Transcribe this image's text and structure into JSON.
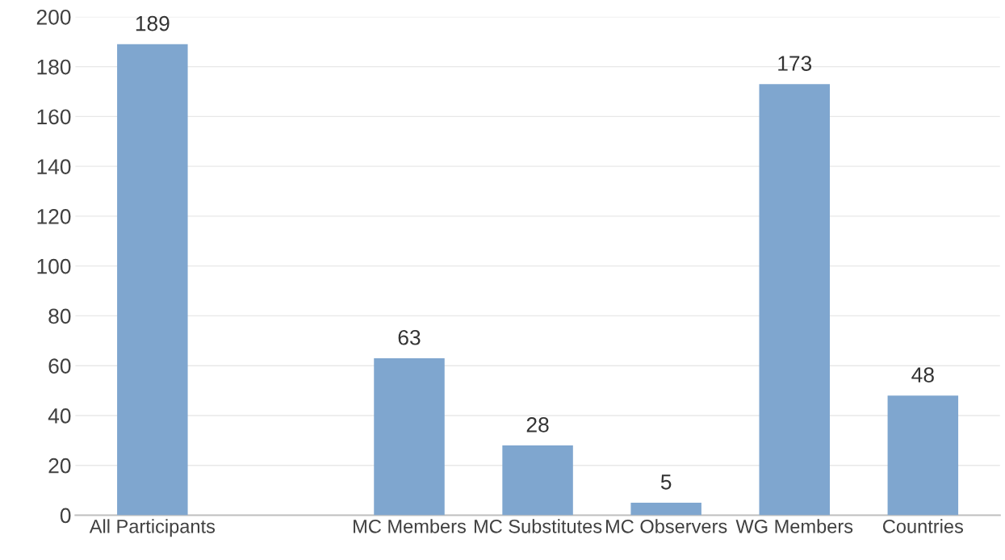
{
  "chart_data": {
    "type": "bar",
    "categories": [
      "All Participants",
      null,
      "MC Members",
      "MC Substitutes",
      "MC Observers",
      "WG Members",
      "Countries"
    ],
    "values": [
      189,
      null,
      63,
      28,
      5,
      173,
      48
    ],
    "color": "#7fa6cf",
    "ylim": [
      0,
      200
    ],
    "yticks": [
      0,
      20,
      40,
      60,
      80,
      100,
      120,
      140,
      160,
      180,
      200
    ],
    "grid": "y",
    "data_labels": true
  }
}
